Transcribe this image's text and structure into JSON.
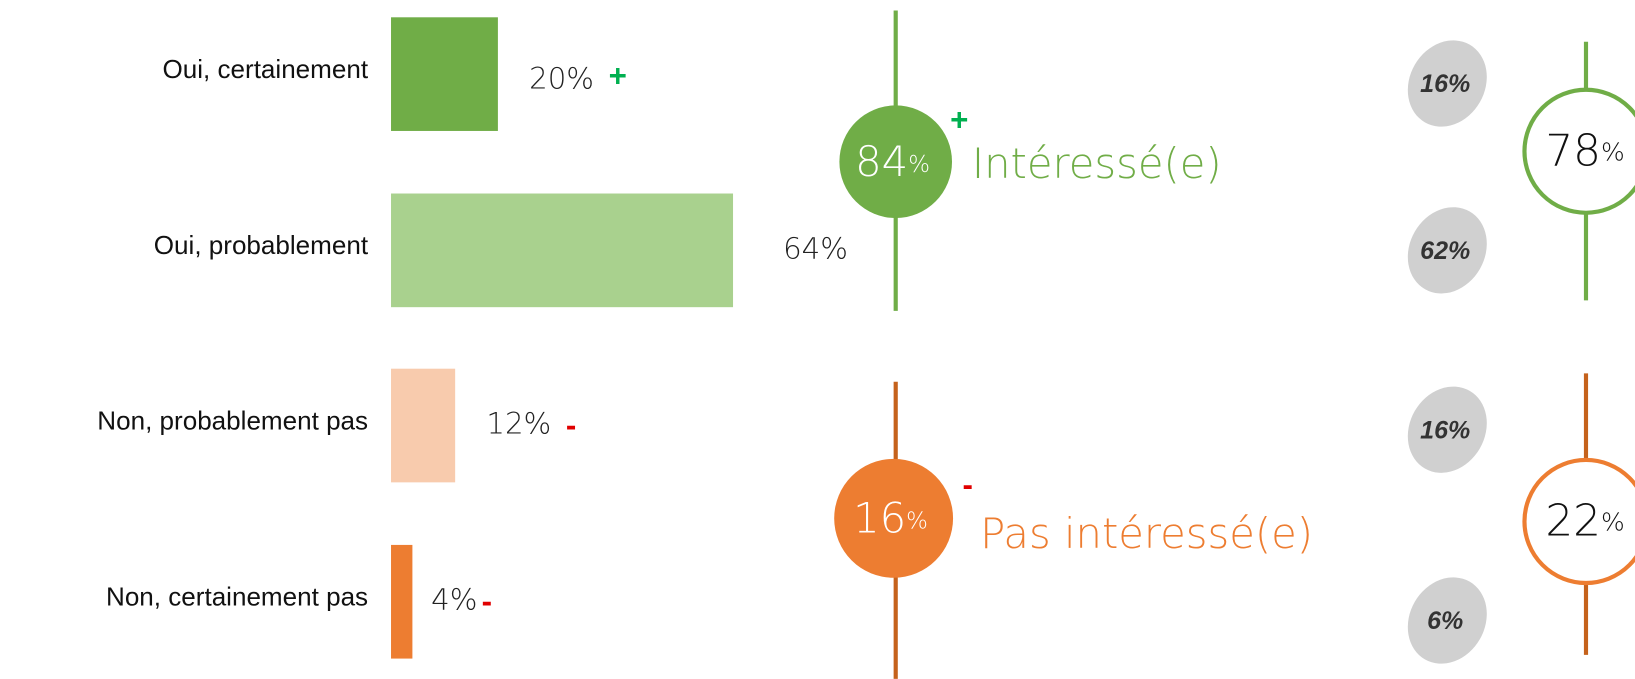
{
  "chart_data": {
    "type": "bar",
    "orientation": "horizontal",
    "categories": [
      "Oui, certainement",
      "Oui, probablement",
      "Non, probablement pas",
      "Non, certainement pas"
    ],
    "values": [
      20,
      64,
      12,
      4
    ],
    "value_labels": [
      "20%",
      "64%",
      "12%",
      "4%"
    ],
    "colors": [
      "#70ad47",
      "#a9d18e",
      "#f8cbad",
      "#ed7d31"
    ],
    "signs": [
      "+",
      null,
      "-",
      "-"
    ],
    "groups": [
      {
        "label": "Intéressé(e)",
        "value": 84,
        "unit": "%",
        "sign": "+",
        "color": "#70ad47",
        "line_color": "#70ad47",
        "side_values": [
          16,
          62
        ],
        "side_labels": [
          "16%",
          "62%"
        ],
        "ring_value": 78,
        "ring_unit": "%"
      },
      {
        "label": "Pas intéressé(e)",
        "value": 16,
        "unit": "%",
        "sign": "-",
        "color": "#ed7d31",
        "line_color": "#c5621c",
        "side_values": [
          16,
          6
        ],
        "side_labels": [
          "16%",
          "6%"
        ],
        "ring_value": 22,
        "ring_unit": "%"
      }
    ]
  }
}
